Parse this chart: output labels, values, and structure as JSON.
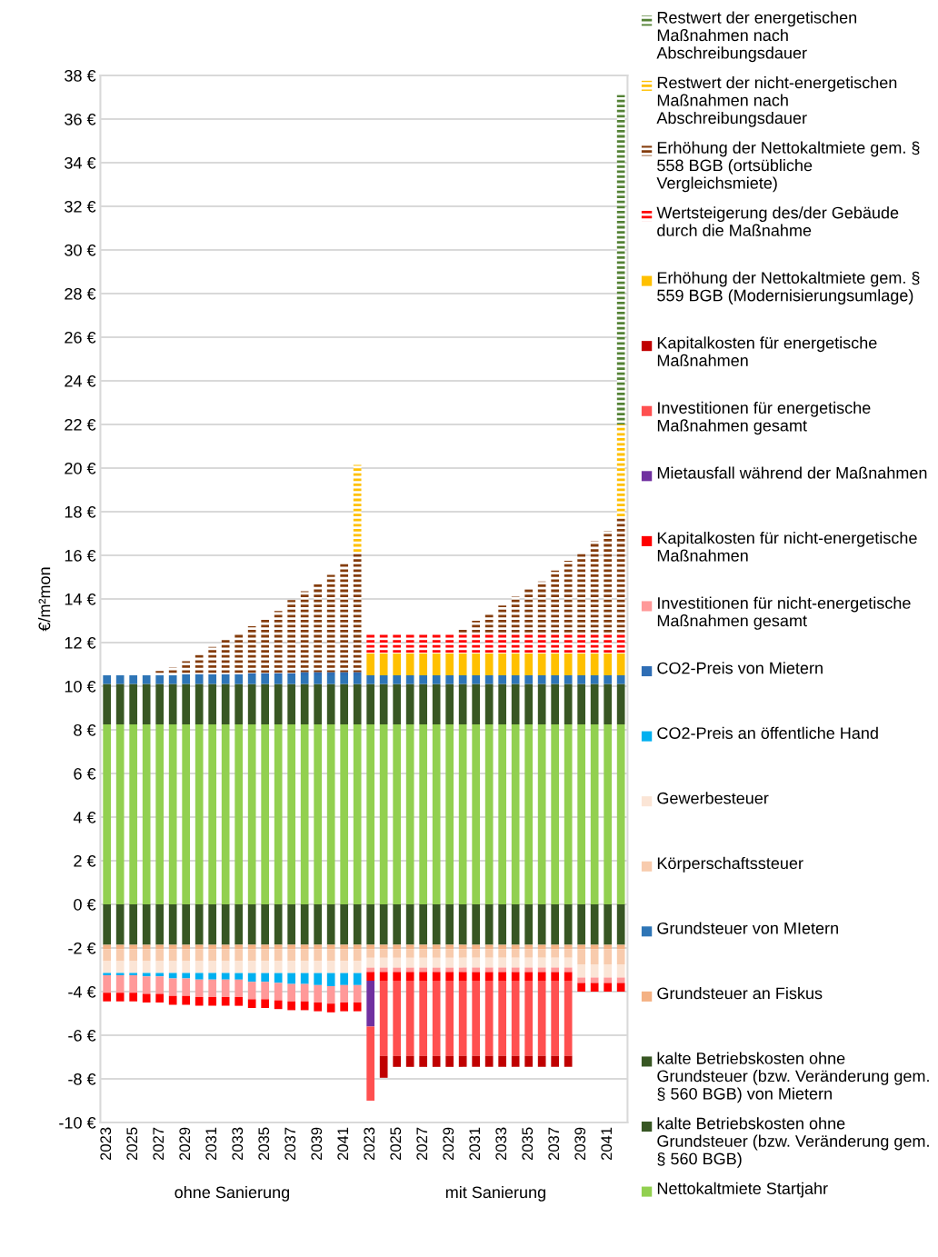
{
  "chart_data": {
    "type": "bar",
    "stacked": true,
    "ylabel": "€/m²mon",
    "legend": "right",
    "grid": "y",
    "categories": [
      "2023",
      null,
      "2025",
      null,
      "2027",
      null,
      "2029",
      null,
      "2031",
      null,
      "2033",
      null,
      "2035",
      null,
      "2037",
      null,
      "2039",
      null,
      "2041",
      null,
      "2023",
      null,
      "2025",
      null,
      "2027",
      null,
      "2029",
      null,
      "2031",
      null,
      "2033",
      null,
      "2035",
      null,
      "2037",
      null,
      "2039",
      null,
      "2041",
      null
    ],
    "annotations": [
      "ohne Sanierung",
      "mit Sanierung"
    ],
    "ylim": [
      -10,
      38
    ],
    "yticks": [
      {
        "value": -10,
        "label": "-10 €"
      },
      {
        "value": -8,
        "label": "-8 €"
      },
      {
        "value": -6,
        "label": "-6 €"
      },
      {
        "value": -4,
        "label": "-4 €"
      },
      {
        "value": -2,
        "label": "-2 €"
      },
      {
        "value": 0,
        "label": "0 €"
      },
      {
        "value": 2,
        "label": "2 €"
      },
      {
        "value": 4,
        "label": "4 €"
      },
      {
        "value": 6,
        "label": "6 €"
      },
      {
        "value": 8,
        "label": "8 €"
      },
      {
        "value": 10,
        "label": "10 €"
      },
      {
        "value": 12,
        "label": "12 €"
      },
      {
        "value": 14,
        "label": "14 €"
      },
      {
        "value": 16,
        "label": "16 €"
      },
      {
        "value": 18,
        "label": "18 €"
      },
      {
        "value": 20,
        "label": "20 €"
      },
      {
        "value": 22,
        "label": "22 €"
      },
      {
        "value": 24,
        "label": "24 €"
      },
      {
        "value": 26,
        "label": "26 €"
      },
      {
        "value": 28,
        "label": "28 €"
      },
      {
        "value": 30,
        "label": "30 €"
      },
      {
        "value": 32,
        "label": "32 €"
      },
      {
        "value": 34,
        "label": "34 €"
      },
      {
        "value": 36,
        "label": "36 €"
      },
      {
        "value": 38,
        "label": "38 €"
      }
    ],
    "series": [
      {
        "name": "Nettokaltmiete Startjahr",
        "color": "#92d050",
        "values": [
          8.25,
          8.25,
          8.25,
          8.25,
          8.25,
          8.25,
          8.25,
          8.25,
          8.25,
          8.25,
          8.25,
          8.25,
          8.25,
          8.25,
          8.25,
          8.25,
          8.25,
          8.25,
          8.25,
          8.25,
          8.25,
          8.25,
          8.25,
          8.25,
          8.25,
          8.25,
          8.25,
          8.25,
          8.25,
          8.25,
          8.25,
          8.25,
          8.25,
          8.25,
          8.25,
          8.25,
          8.25,
          8.25,
          8.25,
          8.25
        ]
      },
      {
        "name": "kalte Betriebskosten ohne Grundsteuer (bzw. Veränderung gem. § 560 BGB)",
        "color": "#375623",
        "values": [
          -1.85,
          -1.85,
          -1.85,
          -1.85,
          -1.85,
          -1.85,
          -1.85,
          -1.85,
          -1.85,
          -1.85,
          -1.85,
          -1.85,
          -1.85,
          -1.85,
          -1.85,
          -1.85,
          -1.85,
          -1.85,
          -1.85,
          -1.85,
          -1.85,
          -1.85,
          -1.85,
          -1.85,
          -1.85,
          -1.85,
          -1.85,
          -1.85,
          -1.85,
          -1.85,
          -1.85,
          -1.85,
          -1.85,
          -1.85,
          -1.85,
          -1.85,
          -1.85,
          -1.85,
          -1.85,
          -1.85
        ]
      },
      {
        "name": "kalte Betriebskosten ohne Grundsteuer (bzw. Veränderung gem. § 560 BGB) von Mietern",
        "color": "#385723",
        "values": [
          1.85,
          1.85,
          1.85,
          1.85,
          1.85,
          1.85,
          1.85,
          1.85,
          1.85,
          1.85,
          1.85,
          1.85,
          1.85,
          1.85,
          1.85,
          1.85,
          1.85,
          1.85,
          1.85,
          1.85,
          1.85,
          1.85,
          1.85,
          1.85,
          1.85,
          1.85,
          1.85,
          1.85,
          1.85,
          1.85,
          1.85,
          1.85,
          1.85,
          1.85,
          1.85,
          1.85,
          1.85,
          1.85,
          1.85,
          1.85
        ]
      },
      {
        "name": "Grundsteuer an Fiskus",
        "color": "#f4b183",
        "values": [
          -0.2,
          -0.2,
          -0.2,
          -0.2,
          -0.2,
          -0.2,
          -0.2,
          -0.2,
          -0.2,
          -0.2,
          -0.2,
          -0.2,
          -0.2,
          -0.2,
          -0.2,
          -0.2,
          -0.2,
          -0.2,
          -0.2,
          -0.2,
          -0.2,
          -0.2,
          -0.2,
          -0.2,
          -0.2,
          -0.2,
          -0.2,
          -0.2,
          -0.2,
          -0.2,
          -0.2,
          -0.2,
          -0.2,
          -0.2,
          -0.2,
          -0.2,
          -0.2,
          -0.2,
          -0.2,
          -0.2
        ]
      },
      {
        "name": "Grundsteuer von MIetern",
        "color": "#2e75b6",
        "values": [
          0.4,
          0.4,
          0.4,
          0.4,
          0.4,
          0.4,
          0.4,
          0.4,
          0.4,
          0.4,
          0.4,
          0.4,
          0.4,
          0.4,
          0.4,
          0.4,
          0.4,
          0.4,
          0.4,
          0.4,
          0.4,
          0.4,
          0.4,
          0.4,
          0.4,
          0.4,
          0.4,
          0.4,
          0.4,
          0.4,
          0.4,
          0.4,
          0.4,
          0.4,
          0.4,
          0.4,
          0.4,
          0.4,
          0.4,
          0.4
        ]
      },
      {
        "name": "Körperschaftssteuer",
        "color": "#f8cbad",
        "values": [
          -0.55,
          -0.55,
          -0.55,
          -0.55,
          -0.55,
          -0.55,
          -0.55,
          -0.55,
          -0.55,
          -0.55,
          -0.55,
          -0.55,
          -0.55,
          -0.55,
          -0.55,
          -0.55,
          -0.55,
          -0.55,
          -0.55,
          -0.55,
          -0.4,
          -0.4,
          -0.4,
          -0.4,
          -0.4,
          -0.4,
          -0.4,
          -0.4,
          -0.4,
          -0.4,
          -0.4,
          -0.4,
          -0.4,
          -0.4,
          -0.4,
          -0.4,
          -0.7,
          -0.7,
          -0.7,
          -0.7
        ]
      },
      {
        "name": "Gewerbesteuer",
        "color": "#fbe5d6",
        "values": [
          -0.55,
          -0.55,
          -0.55,
          -0.55,
          -0.55,
          -0.55,
          -0.55,
          -0.55,
          -0.55,
          -0.55,
          -0.55,
          -0.55,
          -0.55,
          -0.55,
          -0.55,
          -0.55,
          -0.55,
          -0.55,
          -0.55,
          -0.55,
          -0.45,
          -0.45,
          -0.45,
          -0.45,
          -0.45,
          -0.45,
          -0.45,
          -0.45,
          -0.45,
          -0.45,
          -0.45,
          -0.45,
          -0.45,
          -0.45,
          -0.45,
          -0.45,
          -0.6,
          -0.6,
          -0.6,
          -0.6
        ]
      },
      {
        "name": "CO2-Preis an öffentliche Hand",
        "color": "#00b0f0",
        "values": [
          -0.1,
          -0.1,
          -0.1,
          -0.15,
          -0.15,
          -0.25,
          -0.25,
          -0.3,
          -0.3,
          -0.3,
          -0.3,
          -0.4,
          -0.4,
          -0.45,
          -0.5,
          -0.5,
          -0.55,
          -0.6,
          -0.55,
          -0.55,
          null,
          null,
          null,
          null,
          null,
          null,
          null,
          null,
          null,
          null,
          null,
          null,
          null,
          null,
          null,
          null,
          null,
          null,
          null,
          null
        ]
      },
      {
        "name": "CO2-Preis von Mietern",
        "color": "#2f6eb5",
        "values": [
          null,
          null,
          null,
          null,
          null,
          null,
          0.05,
          0.05,
          0.05,
          0.05,
          0.05,
          0.1,
          0.1,
          0.1,
          0.1,
          0.15,
          0.15,
          0.15,
          0.15,
          0.15,
          null,
          null,
          null,
          null,
          null,
          null,
          null,
          null,
          null,
          null,
          null,
          null,
          null,
          null,
          null,
          null,
          null,
          null,
          null,
          null
        ]
      },
      {
        "name": "Investitionen für nicht-energetische Maßnahmen gesamt",
        "color": "#ff9999",
        "values": [
          -0.8,
          -0.8,
          -0.8,
          -0.8,
          -0.8,
          -0.8,
          -0.8,
          -0.8,
          -0.8,
          -0.8,
          -0.8,
          -0.8,
          -0.8,
          -0.8,
          -0.8,
          -0.8,
          -0.8,
          -0.8,
          -0.8,
          -0.8,
          -0.2,
          -0.2,
          -0.2,
          -0.2,
          -0.2,
          -0.2,
          -0.2,
          -0.2,
          -0.2,
          -0.2,
          -0.2,
          -0.2,
          -0.2,
          -0.2,
          -0.2,
          -0.2,
          -0.25,
          -0.25,
          -0.25,
          -0.25
        ]
      },
      {
        "name": "Kapitalkosten für nicht-energetische Maßnahmen",
        "color": "#ff0000",
        "values": [
          -0.4,
          -0.4,
          -0.4,
          -0.4,
          -0.4,
          -0.4,
          -0.4,
          -0.4,
          -0.4,
          -0.4,
          -0.4,
          -0.4,
          -0.4,
          -0.4,
          -0.4,
          -0.4,
          -0.4,
          -0.4,
          -0.4,
          -0.4,
          -0.4,
          -0.4,
          -0.4,
          -0.4,
          -0.4,
          -0.4,
          -0.4,
          -0.4,
          -0.4,
          -0.4,
          -0.4,
          -0.4,
          -0.4,
          -0.4,
          -0.4,
          -0.4,
          -0.4,
          -0.4,
          -0.4,
          -0.4
        ]
      },
      {
        "name": "Mietausfall während der Maßnahmen",
        "color": "#7030a0",
        "values": [
          null,
          null,
          null,
          null,
          null,
          null,
          null,
          null,
          null,
          null,
          null,
          null,
          null,
          null,
          null,
          null,
          null,
          null,
          null,
          null,
          -2.1,
          null,
          null,
          null,
          null,
          null,
          null,
          null,
          null,
          null,
          null,
          null,
          null,
          null,
          null,
          null,
          null,
          null,
          null,
          null
        ]
      },
      {
        "name": "Investitionen für energetische Maßnahmen gesamt",
        "color": "#ff5050",
        "values": [
          null,
          null,
          null,
          null,
          null,
          null,
          null,
          null,
          null,
          null,
          null,
          null,
          null,
          null,
          null,
          null,
          null,
          null,
          null,
          null,
          -3.4,
          -3.45,
          -3.45,
          -3.45,
          -3.45,
          -3.45,
          -3.45,
          -3.45,
          -3.45,
          -3.45,
          -3.45,
          -3.45,
          -3.45,
          -3.45,
          -3.45,
          -3.45,
          null,
          null,
          null,
          null
        ]
      },
      {
        "name": "Kapitalkosten für energetische Maßnahmen",
        "color": "#c00000",
        "values": [
          null,
          null,
          null,
          null,
          null,
          null,
          null,
          null,
          null,
          null,
          null,
          null,
          null,
          null,
          null,
          null,
          null,
          null,
          null,
          null,
          null,
          -1.0,
          -0.5,
          -0.5,
          -0.5,
          -0.5,
          -0.5,
          -0.5,
          -0.5,
          -0.5,
          -0.5,
          -0.5,
          -0.5,
          -0.5,
          -0.5,
          -0.5,
          null,
          null,
          null,
          null
        ]
      },
      {
        "name": "Erhöhung der Nettokaltmiete gem. § 559 BGB (Modernisierungsumlage)",
        "color": "#ffc000",
        "values": [
          null,
          null,
          null,
          null,
          null,
          null,
          null,
          null,
          null,
          null,
          null,
          null,
          null,
          null,
          null,
          null,
          null,
          null,
          null,
          null,
          1.0,
          1.0,
          1.0,
          1.0,
          1.0,
          1.0,
          1.0,
          1.0,
          1.0,
          1.0,
          1.0,
          1.0,
          1.0,
          1.0,
          1.0,
          1.0,
          1.0,
          1.0,
          1.0,
          1.0
        ]
      },
      {
        "name": "Wertsteigerung des/der Gebäude durch die Maßnahme",
        "color": "#ff0000",
        "line_style": "dashed",
        "values": [
          null,
          null,
          null,
          null,
          null,
          null,
          null,
          null,
          null,
          null,
          null,
          null,
          null,
          null,
          null,
          null,
          null,
          null,
          null,
          null,
          0.95,
          0.95,
          0.95,
          0.95,
          0.95,
          0.95,
          0.95,
          0.95,
          0.95,
          0.95,
          0.95,
          0.95,
          0.95,
          0.95,
          0.95,
          0.95,
          0.95,
          0.95,
          0.95,
          0.95
        ]
      },
      {
        "name": "Erhöhung der Nettokaltmiete gem. § 558 BGB (ortsübliche Vergleichsmiete)",
        "color": "#843c0c",
        "line_style": "dashed",
        "values": [
          null,
          null,
          null,
          null,
          0.2,
          0.35,
          0.6,
          0.9,
          1.25,
          1.6,
          1.9,
          2.15,
          2.5,
          2.85,
          3.35,
          3.7,
          4.1,
          4.45,
          5.0,
          5.45,
          null,
          null,
          null,
          null,
          null,
          null,
          null,
          0.2,
          0.55,
          0.9,
          1.25,
          1.65,
          2.0,
          2.35,
          2.85,
          3.3,
          3.7,
          4.2,
          4.65,
          5.25
        ]
      },
      {
        "name": "Restwert der nicht-energetischen Maßnahmen nach Abschreibungsdauer",
        "color": "#ffc000",
        "line_style": "dashed",
        "values": [
          null,
          null,
          null,
          null,
          null,
          null,
          null,
          null,
          null,
          null,
          null,
          null,
          null,
          null,
          null,
          null,
          null,
          null,
          null,
          4.05,
          null,
          null,
          null,
          null,
          null,
          null,
          null,
          null,
          null,
          null,
          null,
          null,
          null,
          null,
          null,
          null,
          null,
          null,
          null,
          4.3
        ]
      },
      {
        "name": "Restwert der energetischen Maßnahmen nach Abschreibungsdauer",
        "color": "#548235",
        "line_style": "dashed",
        "values": [
          null,
          null,
          null,
          null,
          null,
          null,
          null,
          null,
          null,
          null,
          null,
          null,
          null,
          null,
          null,
          null,
          null,
          null,
          null,
          null,
          null,
          null,
          null,
          null,
          null,
          null,
          null,
          null,
          null,
          null,
          null,
          null,
          null,
          null,
          null,
          null,
          null,
          null,
          null,
          15.1
        ]
      }
    ]
  }
}
